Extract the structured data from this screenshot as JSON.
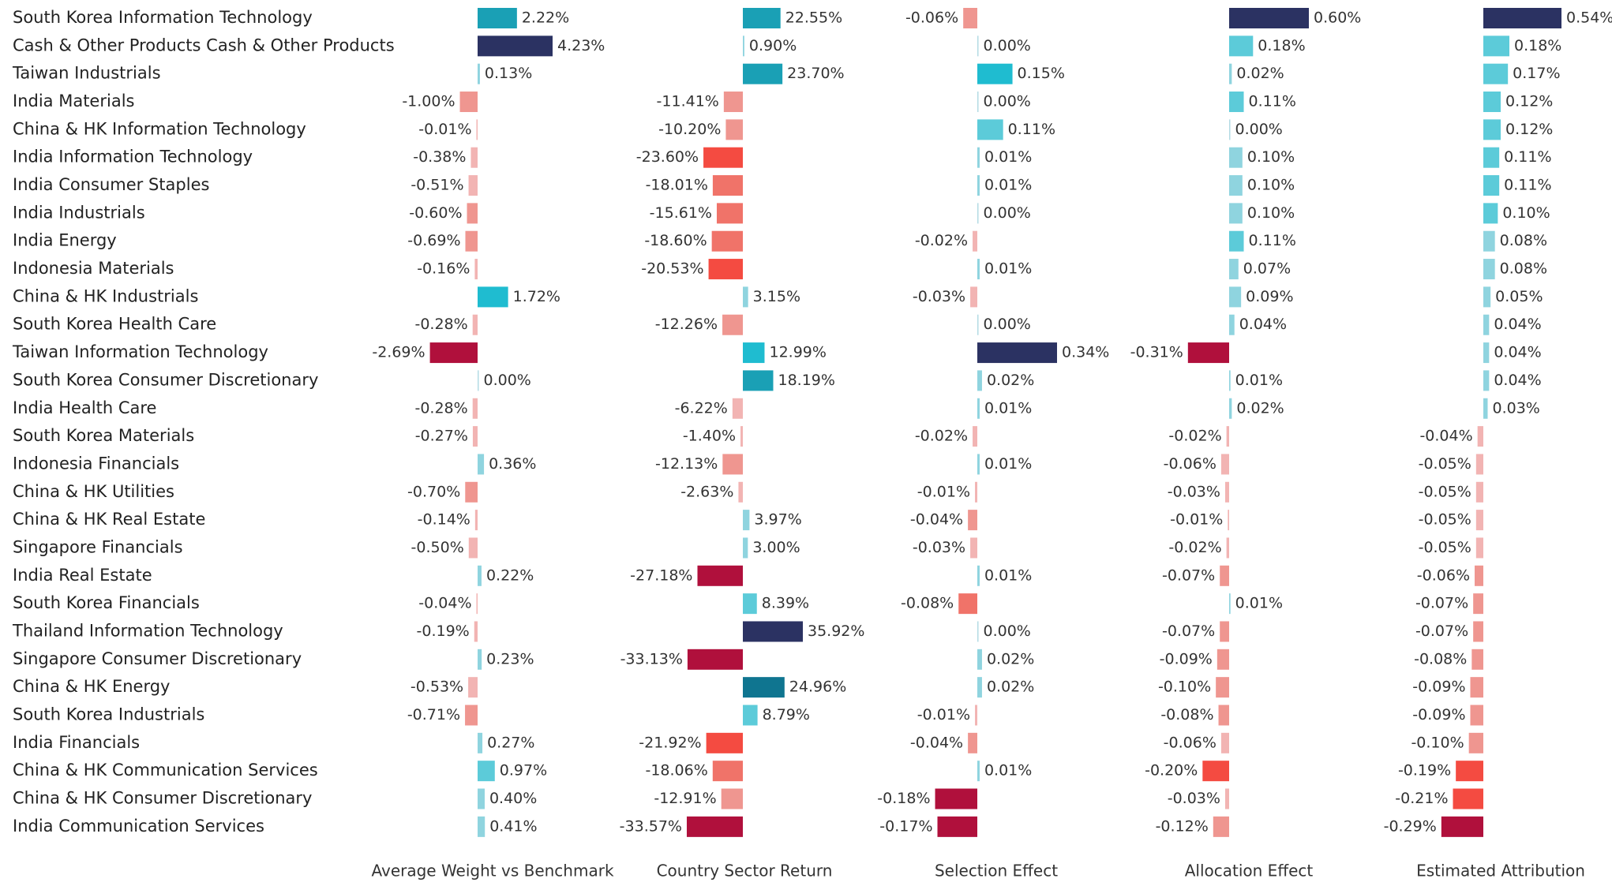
{
  "chart_data": [
    {
      "type": "bar",
      "x_label": "Average Weight vs Benchmark",
      "categories": [
        "South Korea Information Technology",
        "Cash & Other Products Cash & Other Products",
        "Taiwan Industrials",
        "India Materials",
        "China & HK Information Technology",
        "India Information Technology",
        "India Consumer Staples",
        "India Industrials",
        "India Energy",
        "Indonesia Materials",
        "China & HK Industrials",
        "South Korea Health Care",
        "Taiwan Information Technology",
        "South Korea Consumer Discretionary",
        "India Health Care",
        "South Korea Materials",
        "Indonesia Financials",
        "China & HK Utilities",
        "China & HK Real Estate",
        "Singapore Financials",
        "India Real Estate",
        "South Korea Financials",
        "Thailand Information Technology",
        "Singapore Consumer Discretionary",
        "China & HK Energy",
        "South Korea Industrials",
        "India Financials",
        "China & HK Communication Services",
        "China & HK Consumer Discretionary",
        "India Communication Services"
      ],
      "values": [
        2.22,
        4.23,
        0.13,
        -1.0,
        -0.01,
        -0.38,
        -0.51,
        -0.6,
        -0.69,
        -0.16,
        1.72,
        -0.28,
        -2.69,
        0.0,
        -0.28,
        -0.27,
        0.36,
        -0.7,
        -0.14,
        -0.5,
        0.22,
        -0.04,
        -0.19,
        0.23,
        -0.53,
        -0.71,
        0.27,
        0.97,
        0.4,
        0.41
      ],
      "value_labels": [
        "2.22%",
        "4.23%",
        "0.13%",
        "-1.00%",
        "-0.01%",
        "-0.38%",
        "-0.51%",
        "-0.60%",
        "-0.69%",
        "-0.16%",
        "1.72%",
        "-0.28%",
        "-2.69%",
        "0.00%",
        "-0.28%",
        "-0.27%",
        "0.36%",
        "-0.70%",
        "-0.14%",
        "-0.50%",
        "0.22%",
        "-0.04%",
        "-0.19%",
        "0.23%",
        "-0.53%",
        "-0.71%",
        "0.27%",
        "0.97%",
        "0.40%",
        "0.41%"
      ]
    },
    {
      "type": "bar",
      "x_label": "Country Sector Return",
      "values": [
        22.55,
        0.9,
        23.7,
        -11.41,
        -10.2,
        -23.6,
        -18.01,
        -15.61,
        -18.6,
        -20.53,
        3.15,
        -12.26,
        12.99,
        18.19,
        -6.22,
        -1.4,
        -12.13,
        -2.63,
        3.97,
        3.0,
        -27.18,
        8.39,
        35.92,
        -33.13,
        24.96,
        8.79,
        -21.92,
        -18.06,
        -12.91,
        -33.57
      ],
      "value_labels": [
        "22.55%",
        "0.90%",
        "23.70%",
        "-11.41%",
        "-10.20%",
        "-23.60%",
        "-18.01%",
        "-15.61%",
        "-18.60%",
        "-20.53%",
        "3.15%",
        "-12.26%",
        "12.99%",
        "18.19%",
        "-6.22%",
        "-1.40%",
        "-12.13%",
        "-2.63%",
        "3.97%",
        "3.00%",
        "-27.18%",
        "8.39%",
        "35.92%",
        "-33.13%",
        "24.96%",
        "8.79%",
        "-21.92%",
        "-18.06%",
        "-12.91%",
        "-33.57%"
      ]
    },
    {
      "type": "bar",
      "x_label": "Selection Effect",
      "values": [
        -0.06,
        0.0,
        0.15,
        0.0,
        0.11,
        0.01,
        0.01,
        0.0,
        -0.02,
        0.01,
        -0.03,
        0.0,
        0.34,
        0.02,
        0.01,
        -0.02,
        0.01,
        -0.01,
        -0.04,
        -0.03,
        0.01,
        -0.08,
        0.0,
        0.02,
        0.02,
        -0.01,
        -0.04,
        0.01,
        -0.18,
        -0.17
      ],
      "value_labels": [
        "-0.06%",
        "0.00%",
        "0.15%",
        "0.00%",
        "0.11%",
        "0.01%",
        "0.01%",
        "0.00%",
        "-0.02%",
        "0.01%",
        "-0.03%",
        "0.00%",
        "0.34%",
        "0.02%",
        "0.01%",
        "-0.02%",
        "0.01%",
        "-0.01%",
        "-0.04%",
        "-0.03%",
        "0.01%",
        "-0.08%",
        "0.00%",
        "0.02%",
        "0.02%",
        "-0.01%",
        "-0.04%",
        "0.01%",
        "-0.18%",
        "-0.17%"
      ]
    },
    {
      "type": "bar",
      "x_label": "Allocation Effect",
      "values": [
        0.6,
        0.18,
        0.02,
        0.11,
        0.0,
        0.1,
        0.1,
        0.1,
        0.11,
        0.07,
        0.09,
        0.04,
        -0.31,
        0.01,
        0.02,
        -0.02,
        -0.06,
        -0.03,
        -0.01,
        -0.02,
        -0.07,
        0.01,
        -0.07,
        -0.09,
        -0.1,
        -0.08,
        -0.06,
        -0.2,
        -0.03,
        -0.12
      ],
      "value_labels": [
        "0.60%",
        "0.18%",
        "0.02%",
        "0.11%",
        "0.00%",
        "0.10%",
        "0.10%",
        "0.10%",
        "0.11%",
        "0.07%",
        "0.09%",
        "0.04%",
        "-0.31%",
        "0.01%",
        "0.02%",
        "-0.02%",
        "-0.06%",
        "-0.03%",
        "-0.01%",
        "-0.02%",
        "-0.07%",
        "0.01%",
        "-0.07%",
        "-0.09%",
        "-0.10%",
        "-0.08%",
        "-0.06%",
        "-0.20%",
        "-0.03%",
        "-0.12%"
      ]
    },
    {
      "type": "bar",
      "x_label": "Estimated Attribution",
      "values": [
        0.54,
        0.18,
        0.17,
        0.12,
        0.12,
        0.11,
        0.11,
        0.1,
        0.08,
        0.08,
        0.05,
        0.04,
        0.04,
        0.04,
        0.03,
        -0.04,
        -0.05,
        -0.05,
        -0.05,
        -0.05,
        -0.06,
        -0.07,
        -0.07,
        -0.08,
        -0.09,
        -0.09,
        -0.1,
        -0.19,
        -0.21,
        -0.29
      ],
      "value_labels": [
        "0.54%",
        "0.18%",
        "0.17%",
        "0.12%",
        "0.12%",
        "0.11%",
        "0.11%",
        "0.10%",
        "0.08%",
        "0.08%",
        "0.05%",
        "0.04%",
        "0.04%",
        "0.04%",
        "0.03%",
        "-0.04%",
        "-0.05%",
        "-0.05%",
        "-0.05%",
        "-0.05%",
        "-0.06%",
        "-0.07%",
        "-0.07%",
        "-0.08%",
        "-0.09%",
        "-0.09%",
        "-0.10%",
        "-0.19%",
        "-0.21%",
        "-0.29%"
      ]
    }
  ],
  "palette": {
    "positive": [
      "#b3dbe4",
      "#8fd4df",
      "#5ccbd9",
      "#1fbcd0",
      "#1aa0b5",
      "#0f7590",
      "#2b3262"
    ],
    "negative": [
      "#f3cfd0",
      "#f2b4b3",
      "#ef9690",
      "#f07369",
      "#f44b41",
      "#b0103c"
    ]
  }
}
